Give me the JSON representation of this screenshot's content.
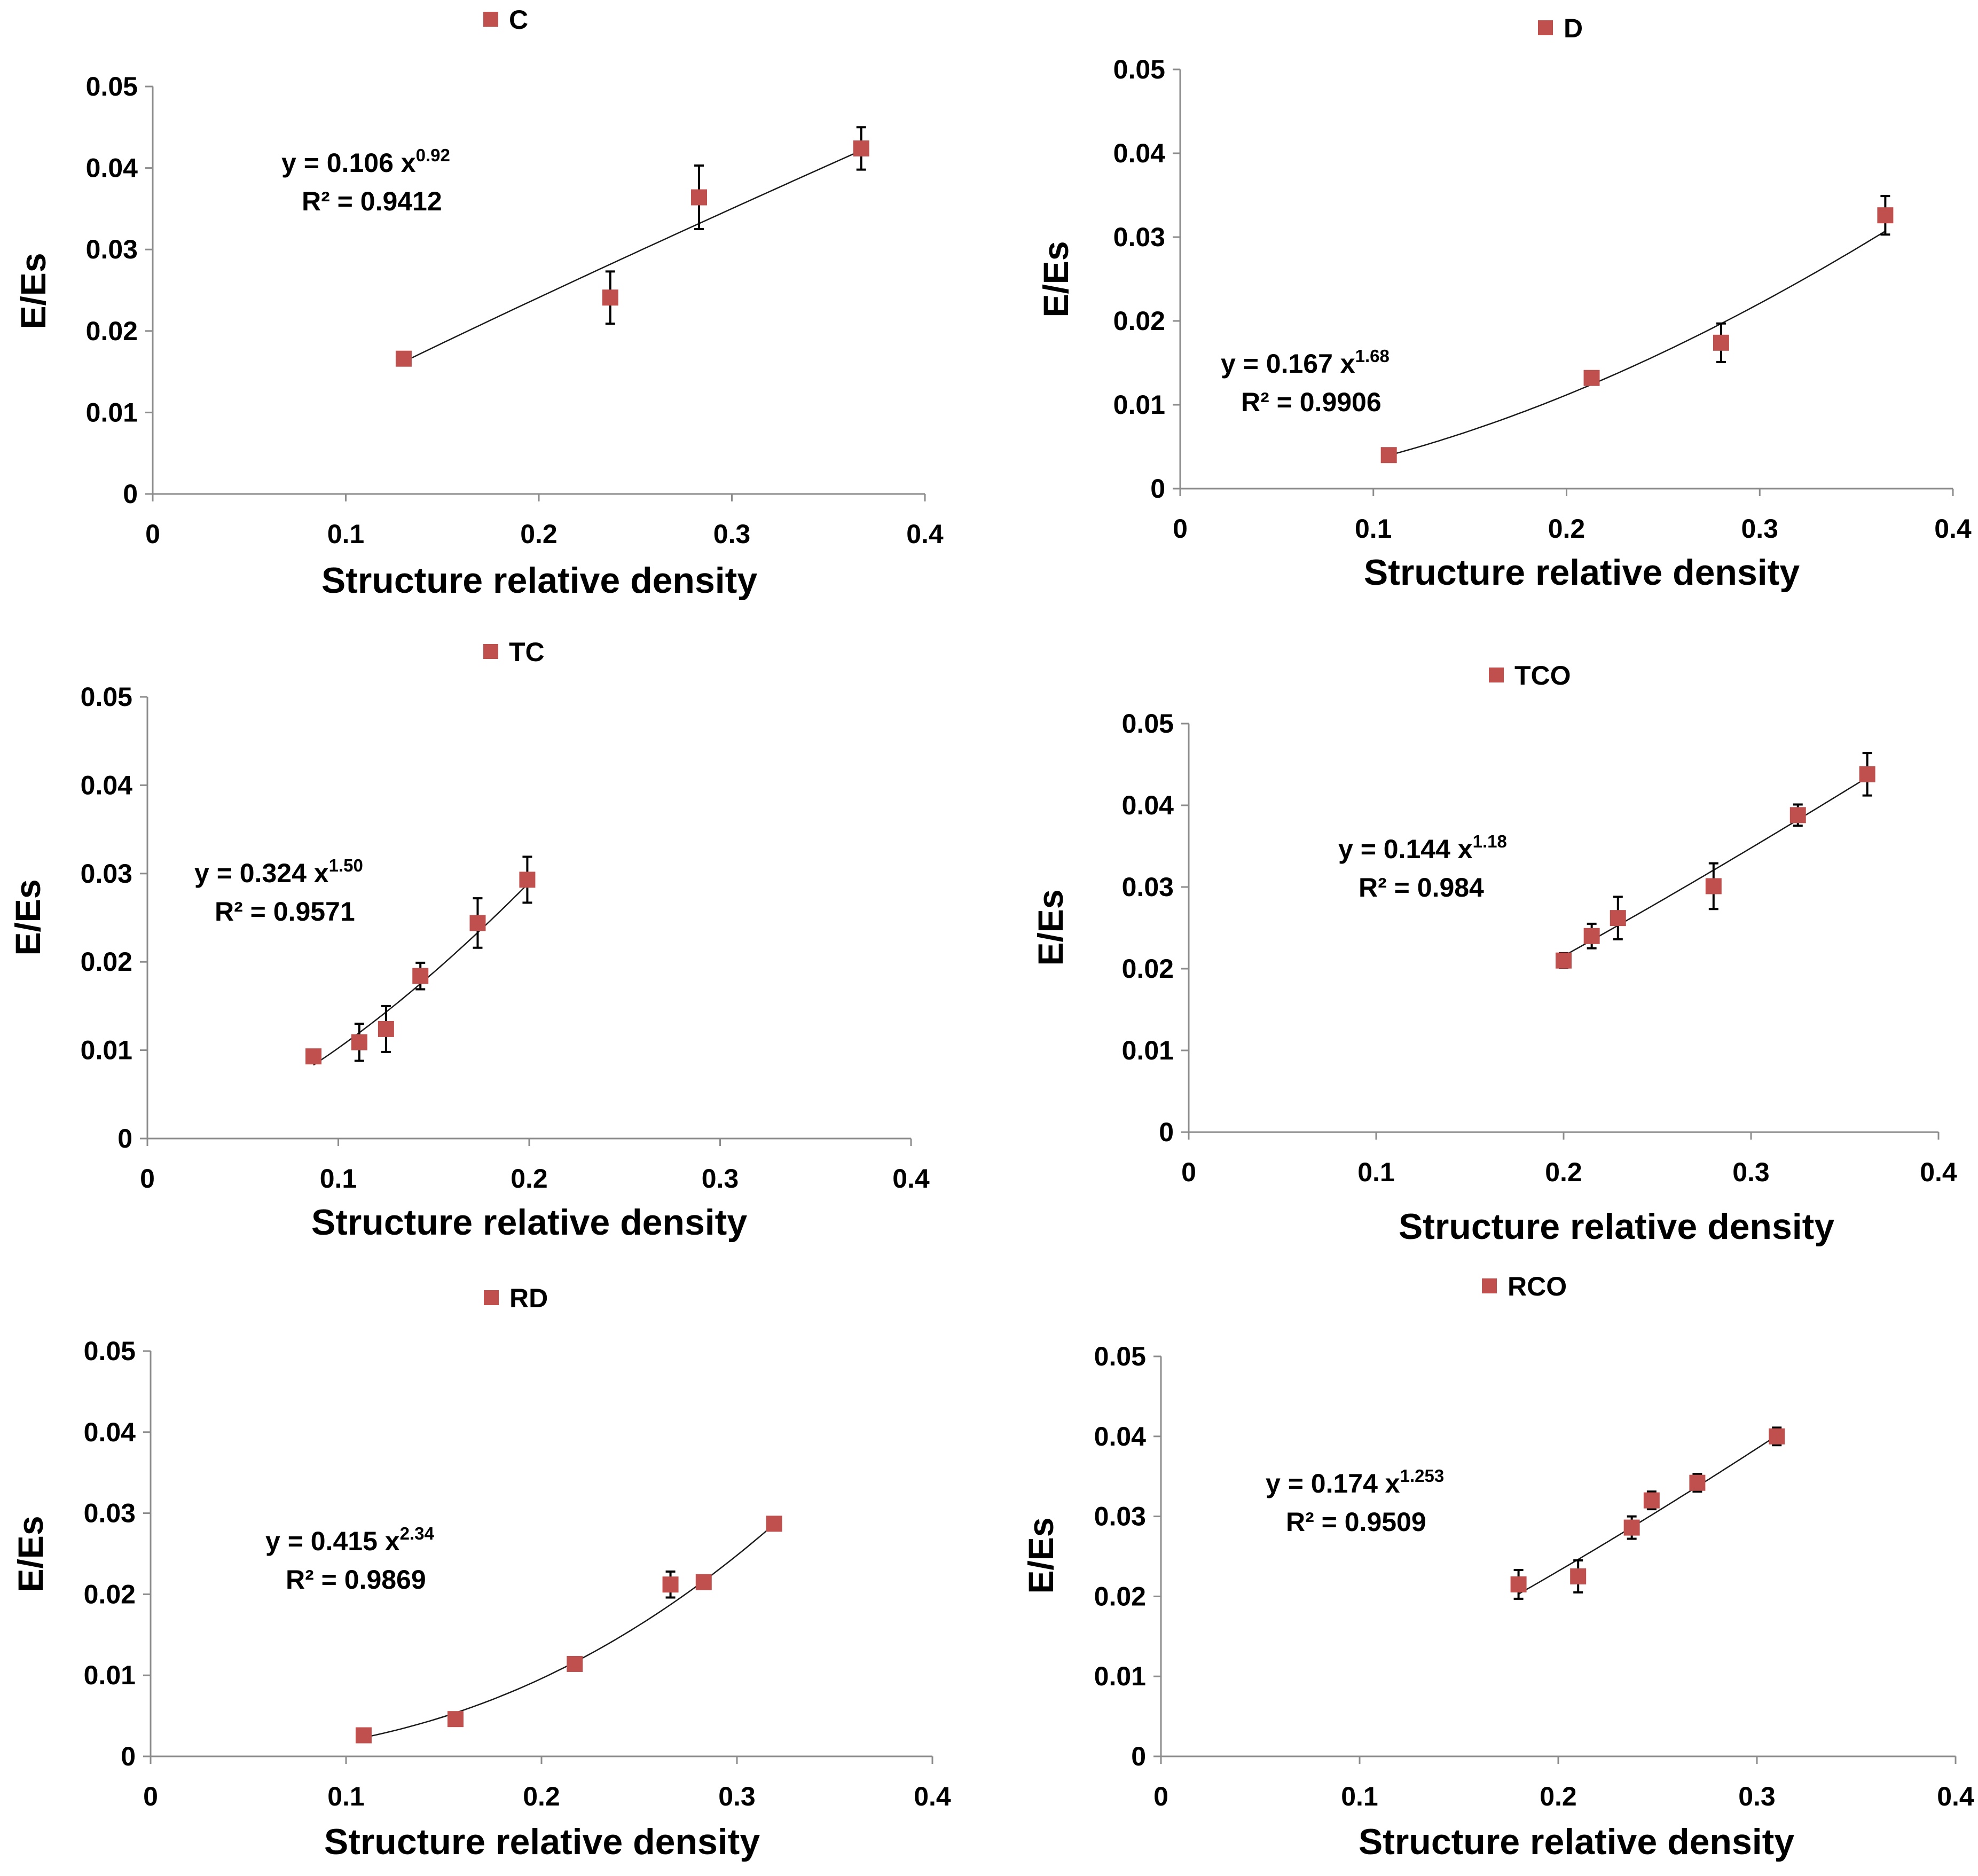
{
  "colors": {
    "marker": "#c0504d",
    "axis": "#8c8c8c",
    "text": "#000000",
    "fit": "#1a1a1a"
  },
  "chart_data": [
    {
      "type": "scatter",
      "legend": "C",
      "xlabel": "Structure relative density",
      "ylabel": "E/Es",
      "xlim": [
        0,
        0.4
      ],
      "ylim": [
        0,
        0.05
      ],
      "xticks": [
        "0",
        "0.1",
        "0.2",
        "0.3",
        "0.4"
      ],
      "yticks": [
        "0",
        "0.01",
        "0.02",
        "0.03",
        "0.04",
        "0.05"
      ],
      "equation": {
        "prefix": "y = 0.106  x",
        "exponent": "0.92",
        "r2": "R² = 0.9412"
      },
      "fit": {
        "a": 0.106,
        "b": 0.92
      },
      "points": [
        {
          "x": 0.13,
          "y": 0.0166,
          "err": 0.0
        },
        {
          "x": 0.237,
          "y": 0.0241,
          "err": 0.0032
        },
        {
          "x": 0.283,
          "y": 0.0364,
          "err": 0.0039
        },
        {
          "x": 0.367,
          "y": 0.0424,
          "err": 0.0026
        }
      ]
    },
    {
      "type": "scatter",
      "legend": "D",
      "xlabel": "Structure relative density",
      "ylabel": "E/Es",
      "xlim": [
        0,
        0.4
      ],
      "ylim": [
        0,
        0.05
      ],
      "xticks": [
        "0",
        "0.1",
        "0.2",
        "0.3",
        "0.4"
      ],
      "yticks": [
        "0",
        "0.01",
        "0.02",
        "0.03",
        "0.04",
        "0.05"
      ],
      "equation": {
        "prefix": "y = 0.167  x",
        "exponent": "1.68",
        "r2": "R² = 0.9906"
      },
      "fit": {
        "a": 0.167,
        "b": 1.68
      },
      "points": [
        {
          "x": 0.108,
          "y": 0.004,
          "err": 0.0
        },
        {
          "x": 0.213,
          "y": 0.0132,
          "err": 0.0
        },
        {
          "x": 0.28,
          "y": 0.0174,
          "err": 0.0023
        },
        {
          "x": 0.365,
          "y": 0.0326,
          "err": 0.0023
        }
      ]
    },
    {
      "type": "scatter",
      "legend": "TC",
      "xlabel": "Structure relative density",
      "ylabel": "E/Es",
      "xlim": [
        0,
        0.4
      ],
      "ylim": [
        0,
        0.05
      ],
      "xticks": [
        "0",
        "0.1",
        "0.2",
        "0.3",
        "0.4"
      ],
      "yticks": [
        "0",
        "0.01",
        "0.02",
        "0.03",
        "0.04",
        "0.05"
      ],
      "equation": {
        "prefix": "y = 0.324  x",
        "exponent": "1.50",
        "r2": "R² = 0.9571"
      },
      "fit": {
        "a": 0.324,
        "b": 1.5
      },
      "points": [
        {
          "x": 0.087,
          "y": 0.0093,
          "err": 0.0
        },
        {
          "x": 0.111,
          "y": 0.0109,
          "err": 0.0021
        },
        {
          "x": 0.125,
          "y": 0.0124,
          "err": 0.0026
        },
        {
          "x": 0.143,
          "y": 0.0184,
          "err": 0.0015
        },
        {
          "x": 0.173,
          "y": 0.0244,
          "err": 0.0028
        },
        {
          "x": 0.199,
          "y": 0.0293,
          "err": 0.0026
        }
      ]
    },
    {
      "type": "scatter",
      "legend": "TCO",
      "xlabel": "Structure relative density",
      "ylabel": "E/Es",
      "xlim": [
        0,
        0.4
      ],
      "ylim": [
        0,
        0.05
      ],
      "xticks": [
        "0",
        "0.1",
        "0.2",
        "0.3",
        "0.4"
      ],
      "yticks": [
        "0",
        "0.01",
        "0.02",
        "0.03",
        "0.04",
        "0.05"
      ],
      "equation": {
        "prefix": "y = 0.144  x",
        "exponent": "1.18",
        "r2": "R² = 0.984"
      },
      "fit": {
        "a": 0.144,
        "b": 1.18
      },
      "points": [
        {
          "x": 0.2,
          "y": 0.021,
          "err": 0.0009
        },
        {
          "x": 0.215,
          "y": 0.024,
          "err": 0.0015
        },
        {
          "x": 0.229,
          "y": 0.0262,
          "err": 0.0026
        },
        {
          "x": 0.28,
          "y": 0.0301,
          "err": 0.0028
        },
        {
          "x": 0.325,
          "y": 0.0388,
          "err": 0.0013
        },
        {
          "x": 0.362,
          "y": 0.0438,
          "err": 0.0026
        }
      ]
    },
    {
      "type": "scatter",
      "legend": "RD",
      "xlabel": "Structure relative density",
      "ylabel": "E/Es",
      "xlim": [
        0,
        0.4
      ],
      "ylim": [
        0,
        0.05
      ],
      "xticks": [
        "0",
        "0.1",
        "0.2",
        "0.3",
        "0.4"
      ],
      "yticks": [
        "0",
        "0.01",
        "0.02",
        "0.03",
        "0.04",
        "0.05"
      ],
      "equation": {
        "prefix": "y = 0.415  x",
        "exponent": "2.34",
        "r2": "R² = 0.9869"
      },
      "fit": {
        "a": 0.415,
        "b": 2.34
      },
      "points": [
        {
          "x": 0.109,
          "y": 0.0026,
          "err": 0.0
        },
        {
          "x": 0.156,
          "y": 0.0046,
          "err": 0.0
        },
        {
          "x": 0.217,
          "y": 0.0114,
          "err": 0.0
        },
        {
          "x": 0.266,
          "y": 0.0212,
          "err": 0.0016
        },
        {
          "x": 0.283,
          "y": 0.0215,
          "err": 0.0
        },
        {
          "x": 0.319,
          "y": 0.0287,
          "err": 0.0008
        }
      ]
    },
    {
      "type": "scatter",
      "legend": "RCO",
      "xlabel": "Structure relative density",
      "ylabel": "E/Es",
      "xlim": [
        0,
        0.4
      ],
      "ylim": [
        0,
        0.05
      ],
      "xticks": [
        "0",
        "0.1",
        "0.2",
        "0.3",
        "0.4"
      ],
      "yticks": [
        "0",
        "0.01",
        "0.02",
        "0.03",
        "0.04",
        "0.05"
      ],
      "equation": {
        "prefix": "y = 0.174 x",
        "exponent": "1.253",
        "r2": "R² = 0.9509"
      },
      "fit": {
        "a": 0.174,
        "b": 1.253
      },
      "points": [
        {
          "x": 0.18,
          "y": 0.0215,
          "err": 0.0018
        },
        {
          "x": 0.21,
          "y": 0.0225,
          "err": 0.002
        },
        {
          "x": 0.237,
          "y": 0.0286,
          "err": 0.0014
        },
        {
          "x": 0.247,
          "y": 0.032,
          "err": 0.0011
        },
        {
          "x": 0.27,
          "y": 0.0342,
          "err": 0.0011
        },
        {
          "x": 0.31,
          "y": 0.04,
          "err": 0.0011
        }
      ]
    }
  ]
}
